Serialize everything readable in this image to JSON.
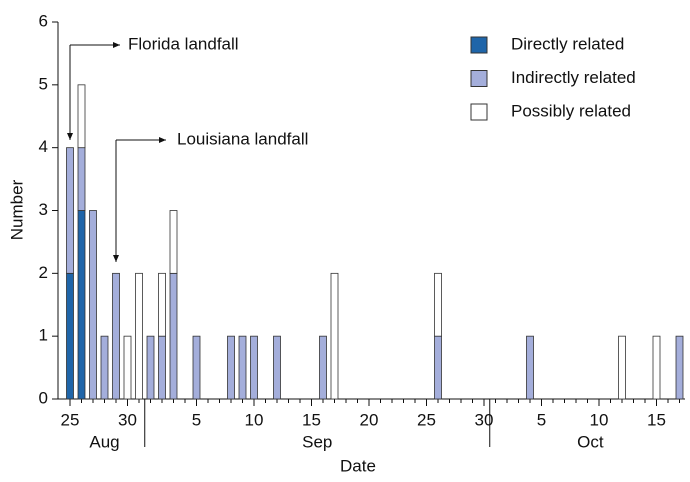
{
  "chart_data": {
    "type": "stacked_bar",
    "x_label": "Date",
    "y_label": "Number",
    "categories": [
      "25",
      null,
      null,
      null,
      null,
      "30",
      null,
      null,
      null,
      null,
      null,
      "5",
      null,
      null,
      null,
      null,
      "10",
      null,
      null,
      null,
      null,
      "15",
      null,
      null,
      null,
      null,
      "20",
      null,
      null,
      null,
      null,
      "25",
      null,
      null,
      null,
      null,
      "30",
      null,
      null,
      null,
      null,
      "5",
      null,
      null,
      null,
      null,
      "10",
      null,
      null,
      null,
      null,
      "15",
      null,
      null
    ],
    "x_groups": [
      "Aug",
      "Sep",
      "Oct"
    ],
    "series": [
      {
        "name": "Directly related",
        "color": "#1f65a9",
        "values": [
          2,
          3,
          0,
          0,
          0,
          0,
          0,
          0,
          0,
          0,
          0,
          0,
          0,
          0,
          0,
          0,
          0,
          0,
          0,
          0,
          0,
          0,
          0,
          0,
          0,
          0,
          0,
          0,
          0,
          0,
          0,
          0,
          0,
          0,
          0,
          0,
          0,
          0,
          0,
          0,
          0,
          0,
          0,
          0,
          0,
          0,
          0,
          0,
          0,
          0,
          0,
          0,
          0,
          0
        ]
      },
      {
        "name": "Indirectly related",
        "color": "#a4aedb",
        "values": [
          2,
          1,
          3,
          1,
          2,
          0,
          0,
          1,
          1,
          2,
          0,
          1,
          0,
          0,
          1,
          1,
          1,
          0,
          1,
          0,
          0,
          0,
          1,
          0,
          0,
          0,
          0,
          0,
          0,
          0,
          0,
          0,
          1,
          0,
          0,
          0,
          0,
          0,
          0,
          0,
          1,
          0,
          0,
          0,
          0,
          0,
          0,
          0,
          0,
          0,
          0,
          0,
          0,
          1
        ]
      },
      {
        "name": "Possibly related",
        "color": "#ffffff",
        "values": [
          0,
          1,
          0,
          0,
          0,
          1,
          2,
          0,
          1,
          1,
          0,
          0,
          0,
          0,
          0,
          0,
          0,
          0,
          0,
          0,
          0,
          0,
          0,
          2,
          0,
          0,
          0,
          0,
          0,
          0,
          0,
          0,
          1,
          0,
          0,
          0,
          0,
          0,
          0,
          0,
          0,
          0,
          0,
          0,
          0,
          0,
          0,
          0,
          1,
          0,
          0,
          1,
          0,
          0
        ]
      }
    ],
    "ylim": [
      0,
      6
    ],
    "yticks": [
      0,
      1,
      2,
      3,
      4,
      5,
      6
    ],
    "annotations": [
      "Florida landfall",
      "Louisiana landfall"
    ],
    "legend": "upper right"
  }
}
